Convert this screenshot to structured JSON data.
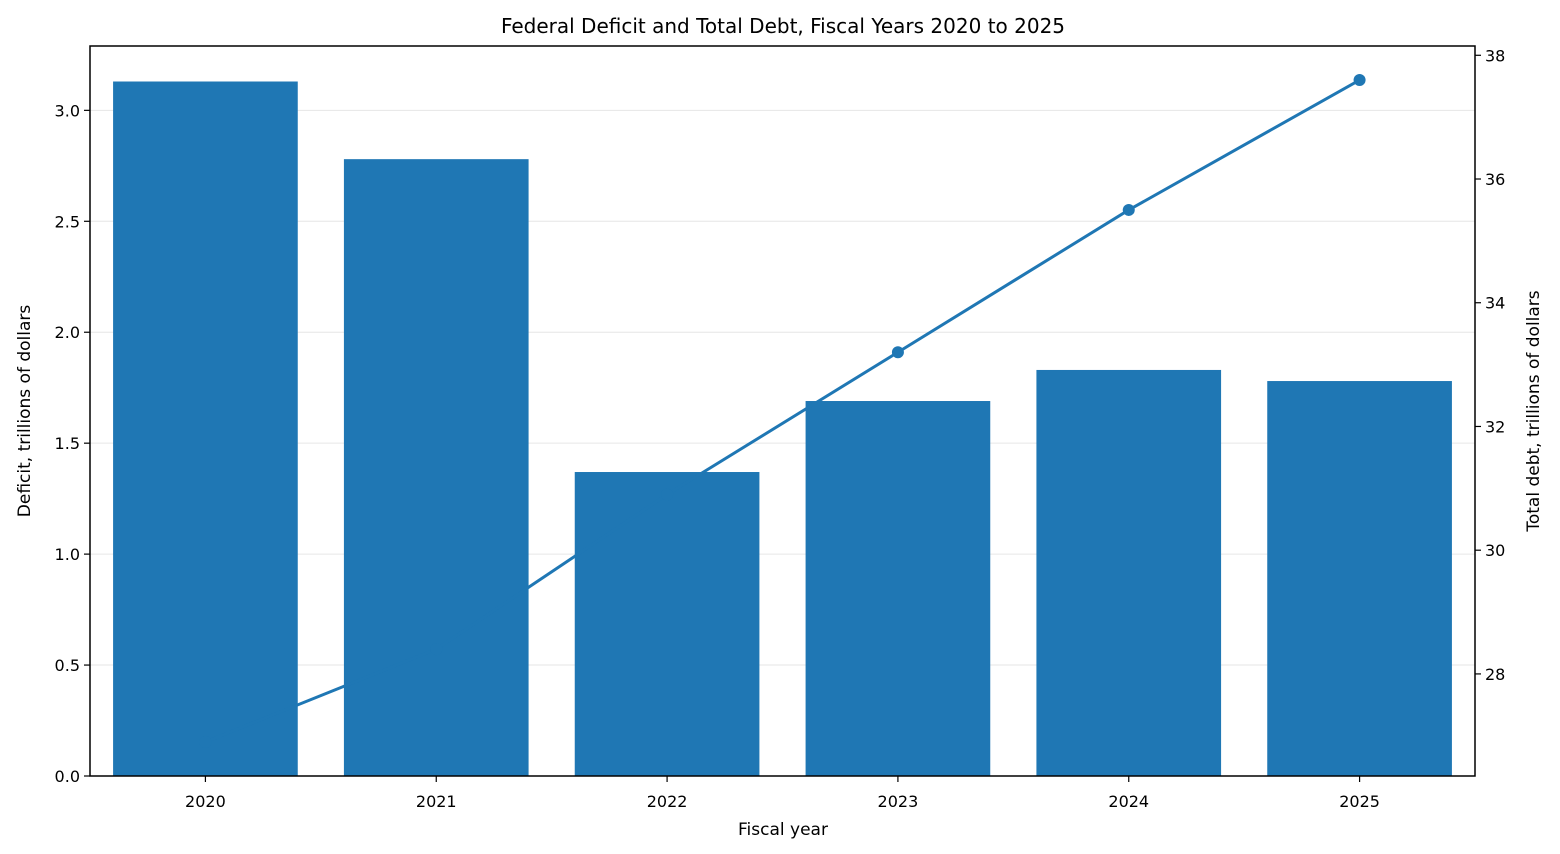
{
  "chart_data": {
    "type": "bar",
    "title": "Federal Deficit and Total Debt, Fiscal Years 2020 to 2025",
    "xlabel": "Fiscal year",
    "ylabel": "Deficit, trillions of dollars",
    "y2label": "Total debt, trillions of dollars",
    "categories": [
      "2020",
      "2021",
      "2022",
      "2023",
      "2024",
      "2025"
    ],
    "series": [
      {
        "type": "bar",
        "axis": "left",
        "color": "#1f77b4",
        "values": [
          3.13,
          2.78,
          1.37,
          1.69,
          1.83,
          1.78
        ]
      },
      {
        "type": "line",
        "axis": "right",
        "color": "#1f77b4",
        "marker": "circle",
        "values": [
          26.9,
          28.4,
          30.9,
          33.2,
          35.5,
          37.6
        ]
      }
    ],
    "ylim": [
      0,
      3.29
    ],
    "y2lim": [
      26.35,
      38.15
    ],
    "yticks": [
      "0.0",
      "0.5",
      "1.0",
      "1.5",
      "2.0",
      "2.5",
      "3.0"
    ],
    "y2ticks": [
      "28",
      "30",
      "32",
      "34",
      "36",
      "38"
    ],
    "grid": "y",
    "legend": "none"
  }
}
